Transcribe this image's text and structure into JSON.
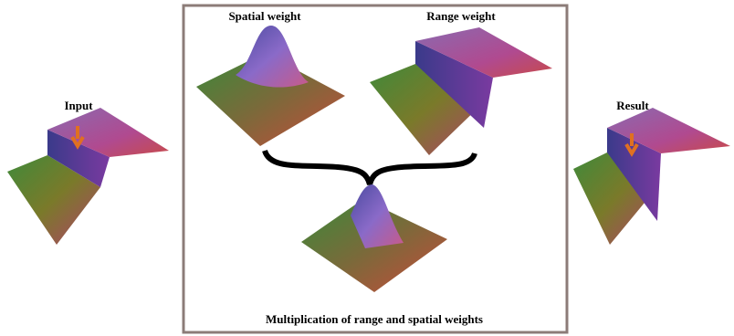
{
  "labels": {
    "input": "Input",
    "spatial_weight": "Spatial weight",
    "range_weight": "Range weight",
    "multiplication": "Multiplication of range and spatial weights",
    "result": "Result"
  }
}
